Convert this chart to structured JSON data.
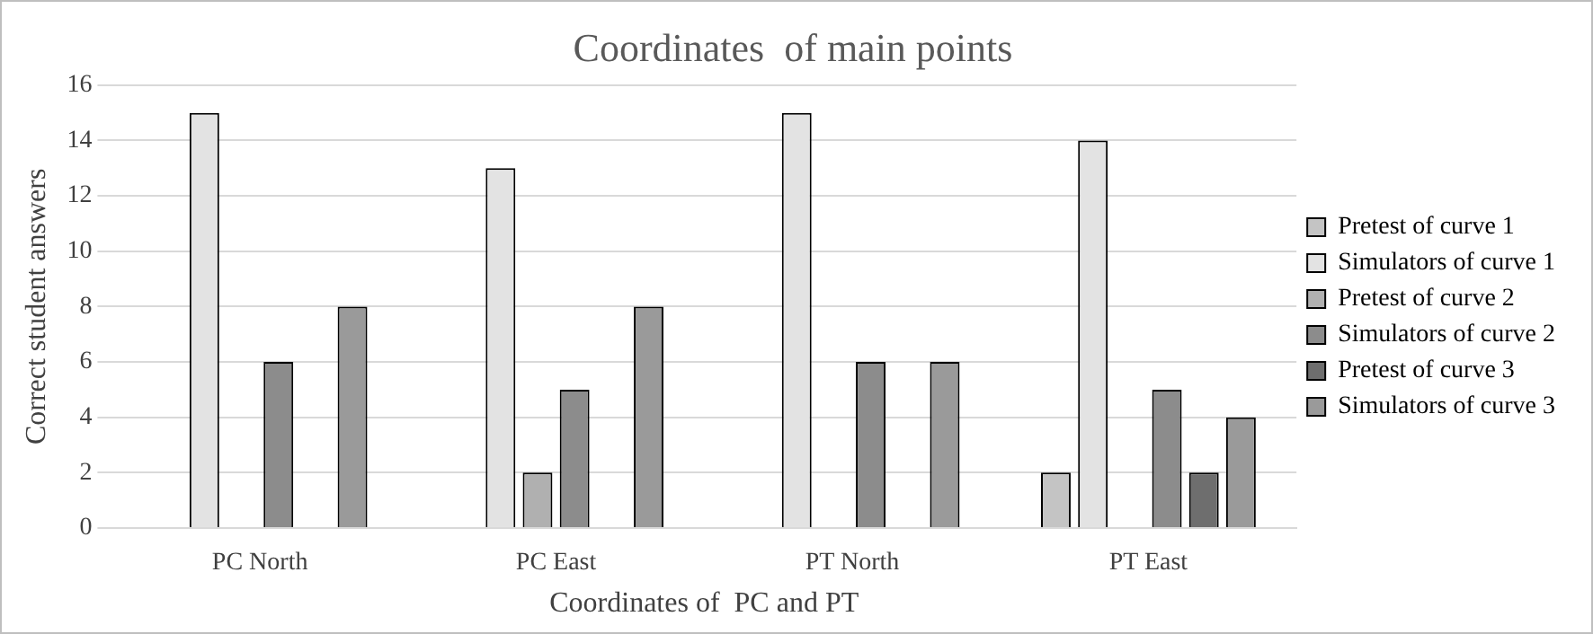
{
  "chart_data": {
    "type": "bar",
    "title": "Coordinates  of main points",
    "xlabel": "Coordinates of  PC and PT",
    "ylabel": "Correct student answers",
    "categories": [
      "PC North",
      "PC East",
      "PT North",
      "PT East"
    ],
    "series": [
      {
        "name": "Pretest of curve 1",
        "color": "#c4c4c4",
        "values": [
          0,
          0,
          0,
          2
        ]
      },
      {
        "name": "Simulators of curve 1",
        "color": "#e3e3e3",
        "values": [
          15,
          13,
          15,
          14
        ]
      },
      {
        "name": "Pretest of curve 2",
        "color": "#b0b0b0",
        "values": [
          0,
          2,
          0,
          0
        ]
      },
      {
        "name": "Simulators of curve 2",
        "color": "#8c8c8c",
        "values": [
          6,
          5,
          6,
          5
        ]
      },
      {
        "name": "Pretest of curve 3",
        "color": "#6e6e6e",
        "values": [
          0,
          0,
          0,
          2
        ]
      },
      {
        "name": "Simulators of curve 3",
        "color": "#9a9a9a",
        "values": [
          8,
          8,
          6,
          4
        ]
      }
    ],
    "ylim": [
      0,
      16
    ],
    "yticks": [
      0,
      2,
      4,
      6,
      8,
      10,
      12,
      14,
      16
    ],
    "grid": "y",
    "legend": "right"
  }
}
